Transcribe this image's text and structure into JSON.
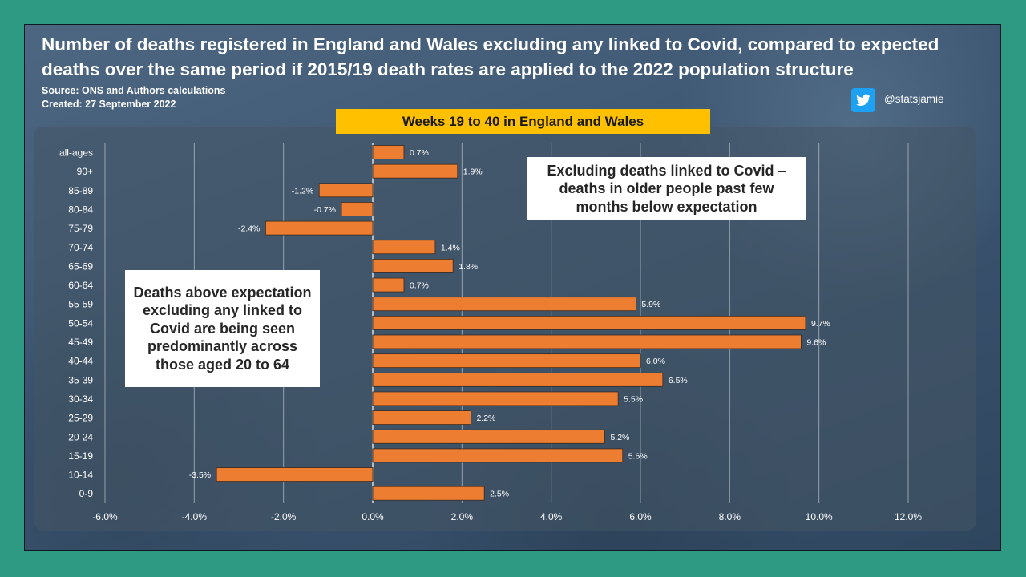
{
  "title": "Number of deaths registered in England and Wales excluding any linked to Covid, compared to expected deaths over the same period if 2015/19 death rates are applied to the 2022 population structure",
  "source": "Source: ONS and Authors calculations",
  "created": "Created: 27 September 2022",
  "twitter_handle": "@statsjamie",
  "icons": {
    "twitter": "twitter-bird-icon"
  },
  "colors": {
    "bar": "#ed7d31",
    "banner": "#ffc000",
    "page_bg": "#2e9a84"
  },
  "callouts": {
    "right": "Excluding deaths linked to Covid – deaths in older people past few months below expectation",
    "left": "Deaths above expectation excluding any linked to Covid are being seen predominantly across those aged 20 to 64"
  },
  "chart_data": {
    "type": "bar",
    "orientation": "horizontal",
    "subtitle": "Weeks 19 to 40 in England and Wales",
    "categories": [
      "all-ages",
      "90+",
      "85-89",
      "80-84",
      "75-79",
      "70-74",
      "65-69",
      "60-64",
      "55-59",
      "50-54",
      "45-49",
      "40-44",
      "35-39",
      "30-34",
      "25-29",
      "20-24",
      "15-19",
      "10-14",
      "0-9"
    ],
    "values": [
      0.7,
      1.9,
      -1.2,
      -0.7,
      -2.4,
      1.4,
      1.8,
      0.7,
      5.9,
      9.7,
      9.6,
      6.0,
      6.5,
      5.5,
      2.2,
      5.2,
      5.6,
      -3.5,
      2.5
    ],
    "value_labels": [
      "0.7%",
      "1.9%",
      "-1.2%",
      "-0.7%",
      "-2.4%",
      "1.4%",
      "1.8%",
      "0.7%",
      "5.9%",
      "9.7%",
      "9.6%",
      "6.0%",
      "6.5%",
      "5.5%",
      "2.2%",
      "5.2%",
      "5.6%",
      "-3.5%",
      "2.5%"
    ],
    "xlim": [
      -6,
      12
    ],
    "xticks": [
      -6,
      -4,
      -2,
      0,
      2,
      4,
      6,
      8,
      10,
      12
    ],
    "xtick_labels": [
      "-6.0%",
      "-4.0%",
      "-2.0%",
      "0.0%",
      "2.0%",
      "4.0%",
      "6.0%",
      "8.0%",
      "10.0%",
      "12.0%"
    ],
    "xlabel": "",
    "ylabel": "",
    "grid": "vertical",
    "legend": "none"
  }
}
